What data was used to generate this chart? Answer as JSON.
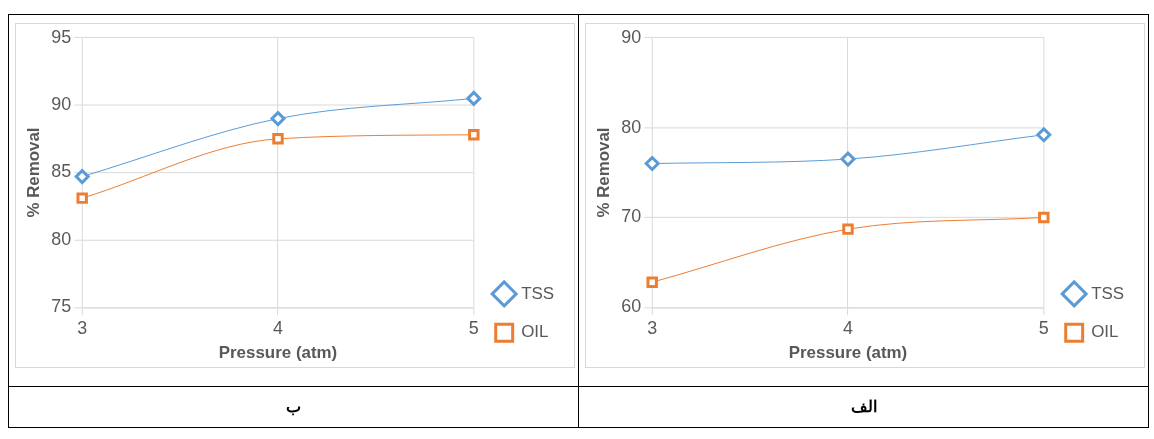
{
  "chart_data": [
    {
      "type": "line",
      "categories": [
        "3",
        "4",
        "5"
      ],
      "xlabel": "Pressure (atm)",
      "ylabel": "% Removal",
      "ylim": [
        60,
        90
      ],
      "yticks": [
        60,
        70,
        80,
        90
      ],
      "grid": true,
      "legend": "right",
      "line_style": "solid",
      "annotations": [
        "الف"
      ],
      "series": [
        {
          "name": "TSS",
          "color": "#5b9bd5",
          "marker": "diamond",
          "values": [
            76.0,
            76.5,
            79.2
          ]
        },
        {
          "name": "OIL",
          "color": "#ed7d31",
          "marker": "square",
          "values": [
            62.8,
            68.7,
            70.0
          ]
        }
      ]
    },
    {
      "type": "line",
      "categories": [
        "3",
        "4",
        "5"
      ],
      "xlabel": "Pressure (atm)",
      "ylabel": "% Removal",
      "ylim": [
        75,
        95
      ],
      "yticks": [
        75,
        80,
        85,
        90,
        95
      ],
      "grid": true,
      "legend": "right",
      "line_style": "solid",
      "annotations": [
        "ب"
      ],
      "series": [
        {
          "name": "TSS",
          "color": "#5b9bd5",
          "marker": "diamond",
          "values": [
            84.7,
            89.0,
            90.5
          ]
        },
        {
          "name": "OIL",
          "color": "#ed7d31",
          "marker": "square",
          "values": [
            83.1,
            87.5,
            87.8
          ]
        }
      ]
    }
  ]
}
